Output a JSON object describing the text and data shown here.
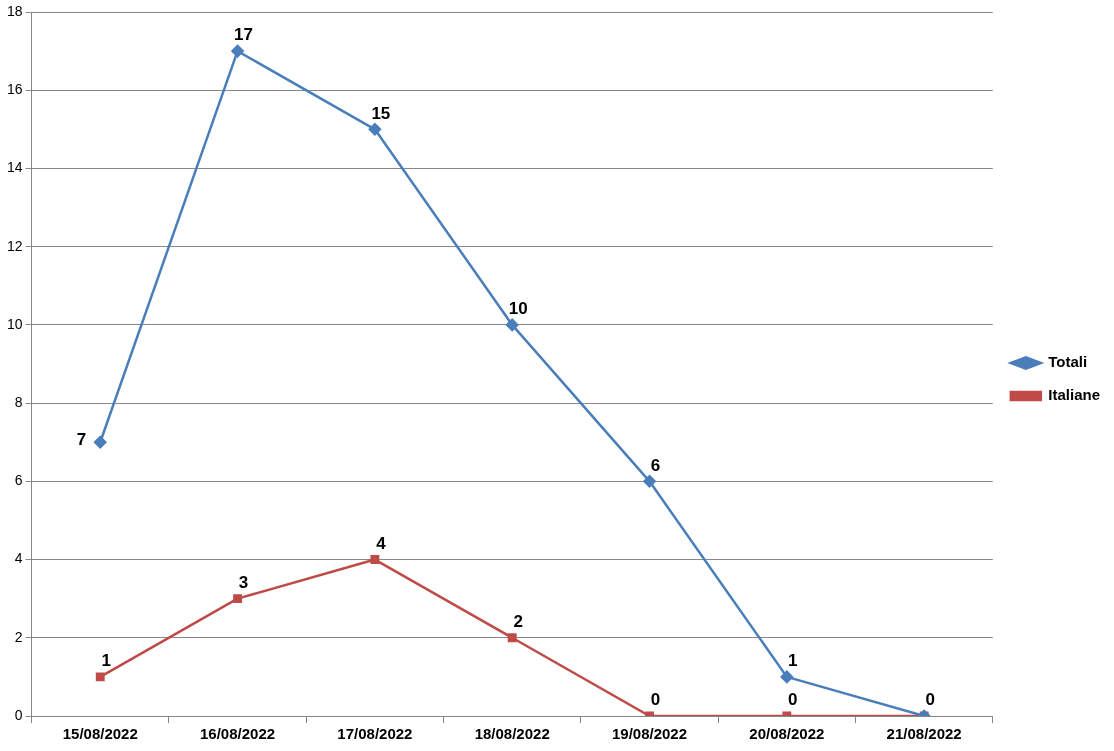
{
  "chart_data": {
    "type": "line",
    "categories": [
      "15/08/2022",
      "16/08/2022",
      "17/08/2022",
      "18/08/2022",
      "19/08/2022",
      "20/08/2022",
      "21/08/2022"
    ],
    "series": [
      {
        "name": "Totali",
        "color": "#4a7ebb",
        "marker": "diamond",
        "values": [
          7,
          17,
          15,
          10,
          6,
          1,
          0
        ],
        "value_labels": [
          "7",
          "17",
          "15",
          "10",
          "6",
          "1",
          null
        ]
      },
      {
        "name": "Italiane",
        "color": "#be4b48",
        "marker": "square",
        "values": [
          1,
          3,
          4,
          2,
          0,
          0,
          0
        ],
        "value_labels": [
          "1",
          "3",
          "4",
          "2",
          "0",
          "0",
          "0"
        ]
      }
    ],
    "ylim": [
      0,
      18
    ],
    "yticks": [
      0,
      2,
      4,
      6,
      8,
      10,
      12,
      14,
      16,
      18
    ],
    "grid": "y",
    "legend": "right",
    "line_style": "solid"
  }
}
